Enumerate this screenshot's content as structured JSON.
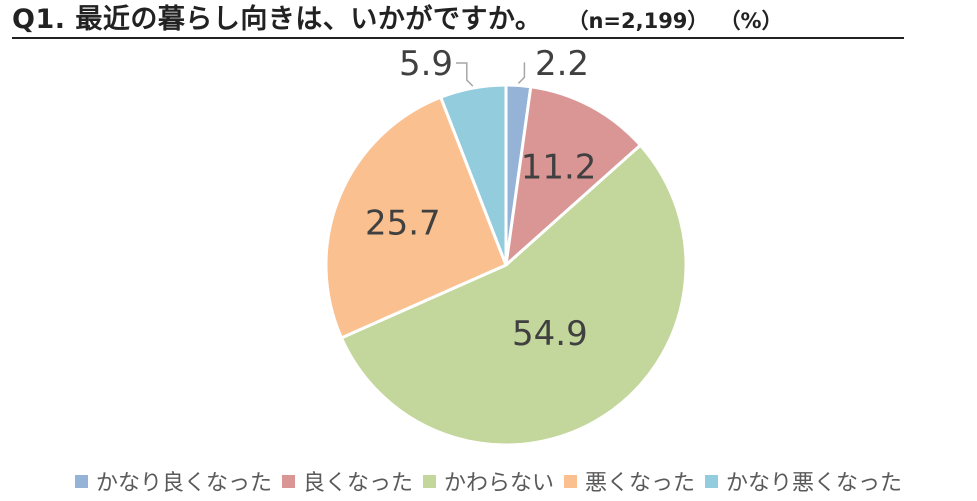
{
  "title": {
    "main": "Q1. 最近の暮らし向きは、いかがですか。",
    "sample": "（n=2,199）",
    "unit": "（%）"
  },
  "chart_data": {
    "type": "pie",
    "title": "Q1. 最近の暮らし向きは、いかがですか。",
    "subtitle": "（n=2,199）（%）",
    "legend_position": "bottom",
    "slices": [
      {
        "label": "かなり良くなった",
        "value": 2.2,
        "display": "2.2",
        "color": "#95b3d7"
      },
      {
        "label": "良くなった",
        "value": 11.2,
        "display": "11.2",
        "color": "#d99694"
      },
      {
        "label": "かわらない",
        "value": 54.9,
        "display": "54.9",
        "color": "#c3d69b"
      },
      {
        "label": "悪くなった",
        "value": 25.7,
        "display": "25.7",
        "color": "#fac090"
      },
      {
        "label": "かなり悪くなった",
        "value": 5.9,
        "display": "5.9",
        "color": "#93cddd"
      }
    ]
  }
}
